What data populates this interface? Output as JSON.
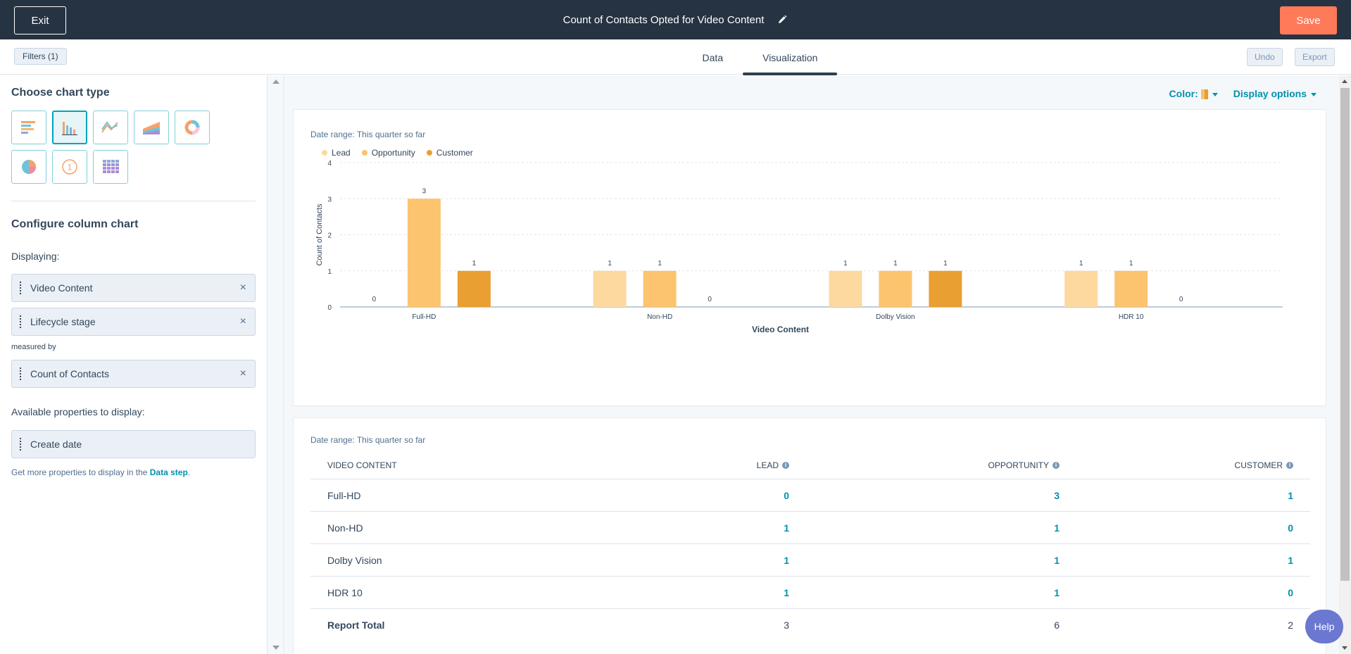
{
  "topbar": {
    "exit_label": "Exit",
    "title": "Count of Contacts Opted for Video Content",
    "save_label": "Save"
  },
  "subbar": {
    "filters_label": "Filters (1)",
    "tabs": [
      {
        "label": "Data",
        "active": false
      },
      {
        "label": "Visualization",
        "active": true
      }
    ],
    "undo_label": "Undo",
    "export_label": "Export"
  },
  "left_panel": {
    "choose_heading": "Choose chart type",
    "chart_types": [
      "horizontal-bar-icon",
      "column-chart-icon",
      "line-chart-icon",
      "area-chart-icon",
      "donut-chart-icon",
      "pie-chart-icon",
      "single-value-icon",
      "pivot-table-icon"
    ],
    "configure_heading": "Configure column chart",
    "displaying_label": "Displaying:",
    "displaying": [
      "Video Content",
      "Lifecycle stage"
    ],
    "measured_by_label": "measured by",
    "measure": "Count of Contacts",
    "available_label": "Available properties to display:",
    "available": [
      "Create date"
    ],
    "hint_prefix": "Get more properties to display in the ",
    "hint_link": "Data step",
    "hint_suffix": "."
  },
  "main": {
    "color_label": "Color:",
    "display_options_label": "Display options",
    "help_label": "Help"
  },
  "chart_data": {
    "type": "bar",
    "date_range": "Date range: This quarter so far",
    "categories": [
      "Full-HD",
      "Non-HD",
      "Dolby Vision",
      "HDR 10"
    ],
    "series": [
      {
        "name": "Lead",
        "values": [
          0,
          1,
          1,
          1
        ],
        "color": "#fdd9a0"
      },
      {
        "name": "Opportunity",
        "values": [
          3,
          1,
          1,
          1
        ],
        "color": "#fcc46e"
      },
      {
        "name": "Customer",
        "values": [
          1,
          0,
          1,
          0
        ],
        "color": "#ea9f33"
      }
    ],
    "xlabel": "Video Content",
    "ylabel": "Count of Contacts",
    "ylim": [
      0,
      4
    ],
    "yticks": [
      0,
      1,
      2,
      3,
      4
    ],
    "legend": "top-left",
    "grid": true
  },
  "table": {
    "date_range": "Date range: This quarter so far",
    "headers": [
      "VIDEO CONTENT",
      "LEAD",
      "OPPORTUNITY",
      "CUSTOMER"
    ],
    "rows": [
      {
        "name": "Full-HD",
        "values": [
          "0",
          "3",
          "1"
        ]
      },
      {
        "name": "Non-HD",
        "values": [
          "1",
          "1",
          "0"
        ]
      },
      {
        "name": "Dolby Vision",
        "values": [
          "1",
          "1",
          "1"
        ]
      },
      {
        "name": "HDR 10",
        "values": [
          "1",
          "1",
          "0"
        ]
      }
    ],
    "total": {
      "name": "Report Total",
      "values": [
        "3",
        "6",
        "2"
      ]
    }
  }
}
